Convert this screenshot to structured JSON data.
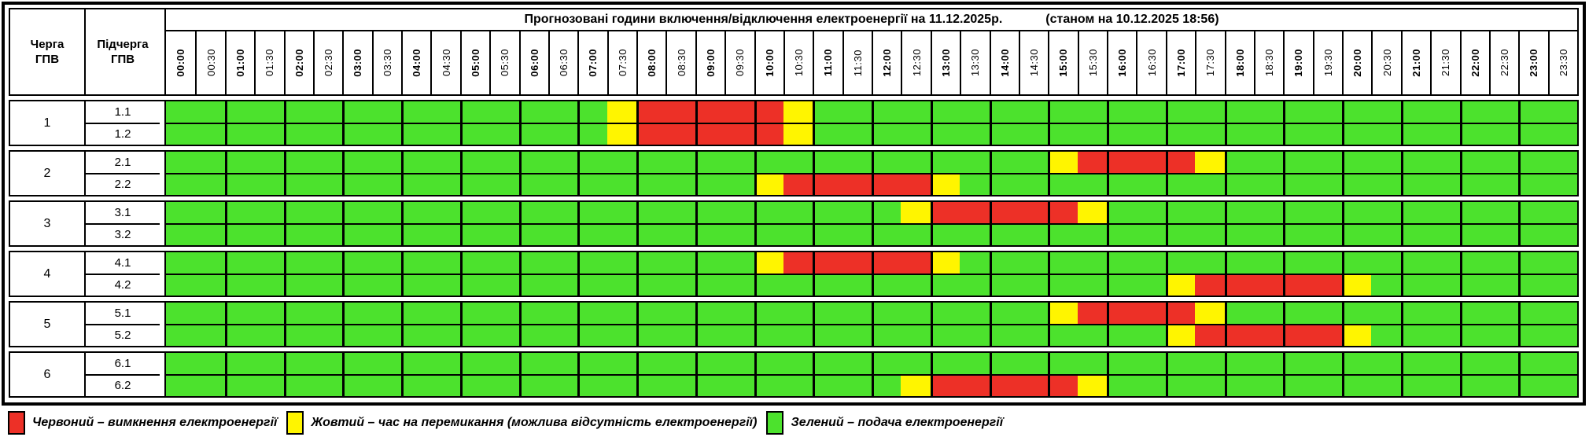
{
  "chart_data": {
    "type": "heatmap",
    "title": "Прогнозовані години включення/відключення електроенергії на 11.12.2025р.",
    "status_note": "(станом на 10.12.2025 18:56)",
    "row_header_labels": {
      "queue": "Черга\nГПВ",
      "subqueue": "Підчерга\nГПВ"
    },
    "x_labels": [
      "00:00",
      "00:30",
      "01:00",
      "01:30",
      "02:00",
      "02:30",
      "03:00",
      "03:30",
      "04:00",
      "04:30",
      "05:00",
      "05:30",
      "06:00",
      "06:30",
      "07:00",
      "07:30",
      "08:00",
      "08:30",
      "09:00",
      "09:30",
      "10:00",
      "10:30",
      "11:00",
      "11:30",
      "12:00",
      "12:30",
      "13:00",
      "13:30",
      "14:00",
      "14:30",
      "15:00",
      "15:30",
      "16:00",
      "16:30",
      "17:00",
      "17:30",
      "18:00",
      "18:30",
      "19:00",
      "19:30",
      "20:00",
      "20:30",
      "21:00",
      "21:30",
      "22:00",
      "22:30",
      "23:00",
      "23:30"
    ],
    "state_colors": {
      "G": "#4CE22D",
      "R": "#ED3027",
      "Y": "#FFF500"
    },
    "groups": [
      {
        "queue": "1",
        "rows": [
          {
            "label": "1.1",
            "slots": "GGGGGGGGGGGGGGGYRRRRRYGGGGGGGGGGGGGGGGGGGGGGGGGG"
          },
          {
            "label": "1.2",
            "slots": "GGGGGGGGGGGGGGGYRRRRRYGGGGGGGGGGGGGGGGGGGGGGGGGG"
          }
        ]
      },
      {
        "queue": "2",
        "rows": [
          {
            "label": "2.1",
            "slots": "GGGGGGGGGGGGGGGGGGGGGGGGGGGGGGYRRRRYGGGGGGGGGGGG"
          },
          {
            "label": "2.2",
            "slots": "GGGGGGGGGGGGGGGGGGGGYRRRRRYGGGGGGGGGGGGGGGGGGGGG"
          }
        ]
      },
      {
        "queue": "3",
        "rows": [
          {
            "label": "3.1",
            "slots": "GGGGGGGGGGGGGGGGGGGGGGGGGYRRRRRYGGGGGGGGGGGGGGGG"
          },
          {
            "label": "3.2",
            "slots": "GGGGGGGGGGGGGGGGGGGGGGGGGGGGGGGGGGGGGGGGGGGGGGGG"
          }
        ]
      },
      {
        "queue": "4",
        "rows": [
          {
            "label": "4.1",
            "slots": "GGGGGGGGGGGGGGGGGGGGYRRRRRYGGGGGGGGGGGGGGGGGGGGG"
          },
          {
            "label": "4.2",
            "slots": "GGGGGGGGGGGGGGGGGGGGGGGGGGGGGGGGGGYRRRRRYGGGGGGG"
          }
        ]
      },
      {
        "queue": "5",
        "rows": [
          {
            "label": "5.1",
            "slots": "GGGGGGGGGGGGGGGGGGGGGGGGGGGGGGYRRRRYGGGGGGGGGGGG"
          },
          {
            "label": "5.2",
            "slots": "GGGGGGGGGGGGGGGGGGGGGGGGGGGGGGGGGGYRRRRRYGGGGGGG"
          }
        ]
      },
      {
        "queue": "6",
        "rows": [
          {
            "label": "6.1",
            "slots": "GGGGGGGGGGGGGGGGGGGGGGGGGGGGGGGGGGGGGGGGGGGGGGGG"
          },
          {
            "label": "6.2",
            "slots": "GGGGGGGGGGGGGGGGGGGGGGGGGYRRRRRYGGGGGGGGGGGGGGGG"
          }
        ]
      }
    ],
    "legend": [
      {
        "state": "R",
        "label": "Червоний – вимкнення електроенергії"
      },
      {
        "state": "Y",
        "label": "Жовтий – час на перемикання (можлива відсутність електроенергії)"
      },
      {
        "state": "G",
        "label": "Зелений – подача електроенергії"
      }
    ]
  }
}
